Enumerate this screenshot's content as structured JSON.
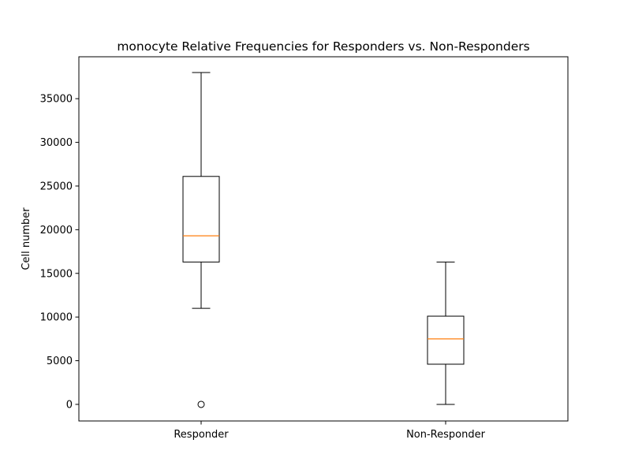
{
  "chart_data": {
    "type": "box",
    "title": "monocyte Relative Frequencies for Responders vs. Non-Responders",
    "xlabel": "",
    "ylabel": "Cell number",
    "categories": [
      "Responder",
      "Non-Responder"
    ],
    "ylim": [
      -1900,
      39800
    ],
    "yticks": [
      0,
      5000,
      10000,
      15000,
      20000,
      25000,
      30000,
      35000
    ],
    "ytick_labels": [
      "0",
      "5000",
      "10000",
      "15000",
      "20000",
      "25000",
      "30000",
      "35000"
    ],
    "grid": false,
    "boxes": [
      {
        "category": "Responder",
        "whisker_low": 11000,
        "q1": 16300,
        "median": 19300,
        "q3": 26100,
        "whisker_high": 38000,
        "outliers": [
          0
        ]
      },
      {
        "category": "Non-Responder",
        "whisker_low": 0,
        "q1": 4600,
        "median": 7500,
        "q3": 10100,
        "whisker_high": 16300,
        "outliers": []
      }
    ],
    "colors": {
      "box": "#000000",
      "median": "#ff7f0e",
      "outlier_edge": "#000000"
    }
  }
}
